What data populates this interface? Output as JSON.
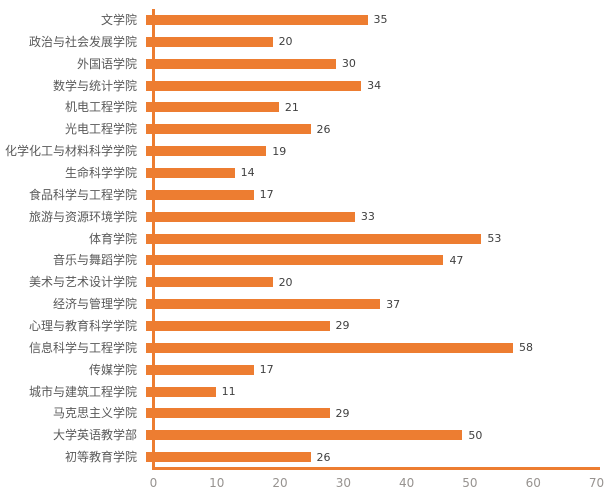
{
  "chart_data": {
    "type": "bar",
    "orientation": "horizontal",
    "title": "",
    "xlabel": "",
    "ylabel": "",
    "categories": [
      "文学院",
      "政治与社会发展学院",
      "外国语学院",
      "数学与统计学院",
      "机电工程学院",
      "光电工程学院",
      "化学化工与材料科学学院",
      "生命科学学院",
      "食品科学与工程学院",
      "旅游与资源环境学院",
      "体育学院",
      "音乐与舞蹈学院",
      "美术与艺术设计学院",
      "经济与管理学院",
      "心理与教育科学学院",
      "信息科学与工程学院",
      "传媒学院",
      "城市与建筑工程学院",
      "马克思主义学院",
      "大学英语教学部",
      "初等教育学院"
    ],
    "values": [
      35,
      20,
      30,
      34,
      21,
      26,
      19,
      14,
      17,
      33,
      53,
      47,
      20,
      37,
      29,
      58,
      17,
      11,
      29,
      50,
      26
    ],
    "data_labels_shown": true,
    "xlim": [
      0,
      70
    ],
    "xticks": [
      0,
      10,
      20,
      30,
      40,
      50,
      60,
      70
    ],
    "grid": false,
    "legend": false,
    "colors": {
      "bar": "#ED7D31",
      "axis_line": "#ED7D31",
      "category_label": "#595959",
      "value_label": "#404040",
      "tick_label": "#979390"
    }
  }
}
